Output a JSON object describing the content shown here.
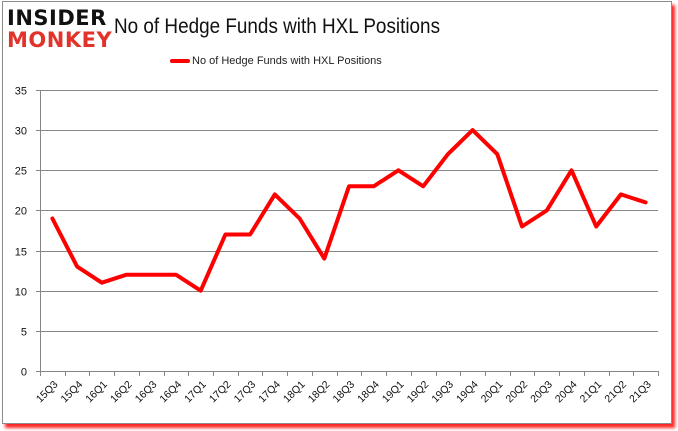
{
  "logo": {
    "top": "INSIDER",
    "bottom": "MONKEY"
  },
  "chart_data": {
    "type": "line",
    "title": "No of Hedge Funds with HXL Positions",
    "xlabel": "",
    "ylabel": "",
    "ylim": [
      0,
      35
    ],
    "yticks": [
      0,
      5,
      10,
      15,
      20,
      25,
      30,
      35
    ],
    "grid": true,
    "legend_position": "top",
    "categories": [
      "15Q3",
      "15Q4",
      "16Q1",
      "16Q2",
      "16Q3",
      "16Q4",
      "17Q1",
      "17Q2",
      "17Q3",
      "17Q4",
      "18Q1",
      "18Q2",
      "18Q3",
      "18Q4",
      "19Q1",
      "19Q2",
      "19Q3",
      "19Q4",
      "20Q1",
      "20Q2",
      "20Q3",
      "20Q4",
      "21Q1",
      "21Q2",
      "21Q3"
    ],
    "series": [
      {
        "name": "No of Hedge Funds with HXL Positions",
        "color": "#ff0000",
        "values": [
          19,
          13,
          11,
          12,
          12,
          12,
          10,
          17,
          17,
          22,
          19,
          14,
          23,
          23,
          25,
          23,
          27,
          30,
          27,
          18,
          20,
          25,
          18,
          22,
          21
        ]
      }
    ]
  }
}
